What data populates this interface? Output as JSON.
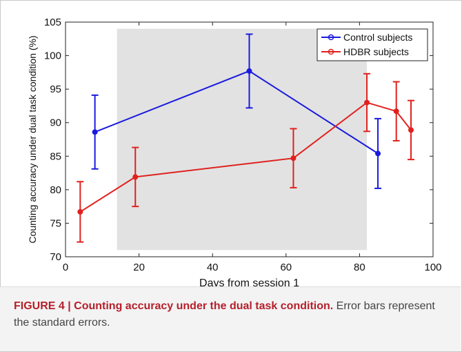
{
  "chart_data": {
    "type": "line",
    "xlabel": "Days from session 1",
    "ylabel": "Counting accuracy under dual task condition (%)",
    "xlim": [
      0,
      100
    ],
    "ylim": [
      70,
      105
    ],
    "x_ticks": [
      "0",
      "20",
      "40",
      "60",
      "80",
      "100"
    ],
    "y_ticks": [
      "70",
      "75",
      "80",
      "85",
      "90",
      "95",
      "100",
      "105"
    ],
    "shaded_region": [
      14,
      82
    ],
    "shaded_color": "#e2e2e2",
    "legend_position": "top-right",
    "grid": false,
    "series": [
      {
        "name": "Control subjects",
        "color": "#1a1adf",
        "x": [
          8,
          50,
          85
        ],
        "y": [
          88.6,
          97.7,
          85.4
        ],
        "error": [
          5.5,
          5.5,
          5.2
        ]
      },
      {
        "name": "HDBR subjects",
        "color": "#e0211d",
        "x": [
          4,
          19,
          62,
          82,
          90,
          94
        ],
        "y": [
          76.7,
          81.9,
          84.7,
          93.0,
          91.7,
          88.9
        ],
        "error": [
          4.5,
          4.4,
          4.4,
          4.3,
          4.4,
          4.4
        ]
      }
    ]
  },
  "caption": {
    "label": "FIGURE 4 | Counting accuracy under the dual task condition.",
    "text": " Error bars represent the standard errors."
  }
}
